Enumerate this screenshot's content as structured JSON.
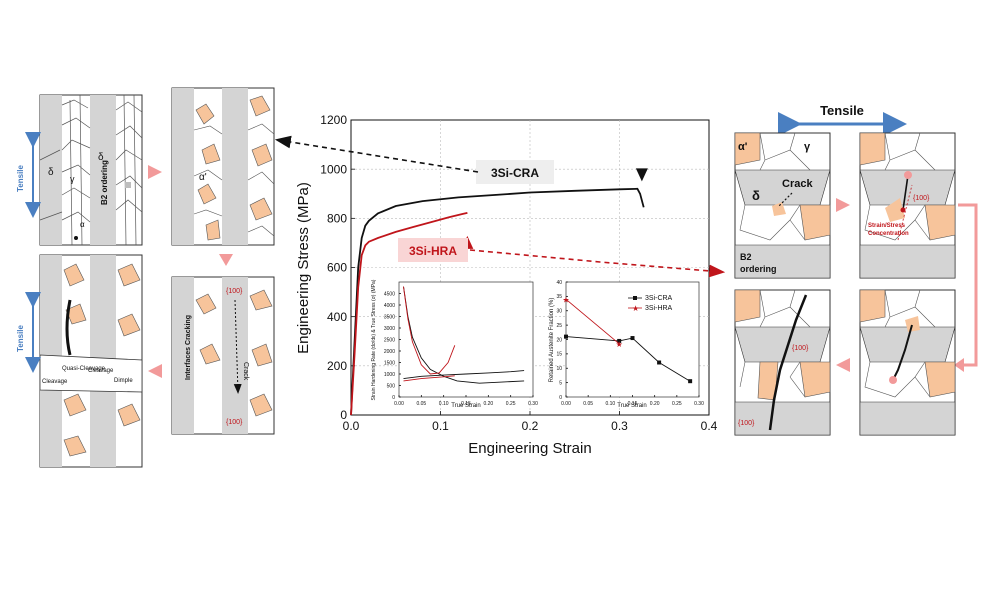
{
  "colors": {
    "cra": "#111111",
    "hra": "#c0151b",
    "delta": "#d4d4d4",
    "martensite": "#f7c49b",
    "tensile_arrow": "#4a7fc1",
    "flow_arrow": "#f29a9a",
    "panel_border": "#333333"
  },
  "left_panels": {
    "tensile_top": "Tensile",
    "delta_a": "δ",
    "delta_b": "δ",
    "gamma": "γ",
    "alpha": "α",
    "b2_ordering": "B2 ordering",
    "alpha_prime": "α'",
    "plane_top": "{100}",
    "crack": "Crack",
    "interfaces_cracking": "Interfaces Cracking",
    "plane_bottom": "{100}",
    "tensile_bottom": "Tensile",
    "cleavage": "Cleavage",
    "quasi_cleavage": "Quasi-Cleavage",
    "cleavage_2": "Cleavage",
    "dimple": "Dimple"
  },
  "right_panels": {
    "tensile": "Tensile",
    "alpha_prime": "α'",
    "gamma": "γ",
    "delta": "δ",
    "crack": "Crack",
    "b2_ordering_1": "B2",
    "b2_ordering_2": "ordering",
    "plane_1": "{100}",
    "concentration_1": "Strain/Stress",
    "concentration_2": "Concentration",
    "plane_2": "{100}",
    "plane_3": "{100}"
  },
  "chart_data": [
    {
      "type": "line",
      "xlabel": "Engineering Strain",
      "ylabel": "Engineering Stress (MPa)",
      "xlim": [
        0,
        0.4
      ],
      "ylim": [
        0,
        1200
      ],
      "xticks": [
        "0.0",
        "0.1",
        "0.2",
        "0.3",
        "0.4"
      ],
      "yticks": [
        "0",
        "200",
        "400",
        "600",
        "800",
        "1000",
        "1200"
      ],
      "grid": true,
      "series": [
        {
          "name": "3Si-CRA",
          "x": [
            0,
            0.004,
            0.008,
            0.012,
            0.016,
            0.02,
            0.03,
            0.05,
            0.08,
            0.12,
            0.16,
            0.2,
            0.25,
            0.3,
            0.32,
            0.323,
            0.327
          ],
          "y": [
            0,
            300,
            600,
            720,
            770,
            790,
            820,
            850,
            870,
            885,
            895,
            905,
            912,
            918,
            920,
            900,
            845
          ]
        },
        {
          "name": "3Si-HRA",
          "x": [
            0,
            0.004,
            0.008,
            0.012,
            0.016,
            0.02,
            0.03,
            0.05,
            0.07,
            0.09,
            0.11,
            0.125,
            0.13
          ],
          "y": [
            0,
            250,
            520,
            650,
            690,
            705,
            720,
            745,
            765,
            785,
            805,
            818,
            822
          ]
        }
      ],
      "markers": [
        {
          "series": "3Si-CRA",
          "x": 0.325,
          "y": 975
        },
        {
          "series": "3Si-HRA",
          "x": 0.13,
          "y": 700
        }
      ],
      "labels": [
        "3Si-CRA",
        "3Si-HRA"
      ]
    },
    {
      "type": "line",
      "xlabel": "True Strain",
      "ylabel": "Strain Hardening Rate (dσ/dε) & True Stress (σ) (MPa)",
      "xlim": [
        0,
        0.3
      ],
      "ylim": [
        0,
        5000
      ],
      "xticks": [
        "0.00",
        "0.05",
        "0.10",
        "0.15",
        "0.20",
        "0.25",
        "0.30"
      ],
      "yticks": [
        "0",
        "500",
        "1000",
        "1500",
        "2000",
        "2500",
        "3000",
        "3500",
        "4000",
        "4500"
      ],
      "series": [
        {
          "x": [
            0.01,
            0.02,
            0.03,
            0.05,
            0.07,
            0.1,
            0.13,
            0.18,
            0.23,
            0.28
          ],
          "y": [
            4800,
            3500,
            2600,
            1700,
            1200,
            900,
            700,
            600,
            650,
            700
          ]
        },
        {
          "x": [
            0.01,
            0.02,
            0.03,
            0.05,
            0.07,
            0.09,
            0.11,
            0.125
          ],
          "y": [
            4800,
            3400,
            2400,
            1400,
            1000,
            1050,
            1500,
            2250
          ]
        },
        {
          "x": [
            0.01,
            0.05,
            0.1,
            0.15,
            0.2,
            0.25,
            0.28
          ],
          "y": [
            800,
            900,
            950,
            1000,
            1050,
            1100,
            1150
          ]
        },
        {
          "x": [
            0.01,
            0.05,
            0.1,
            0.125
          ],
          "y": [
            700,
            800,
            880,
            920
          ]
        }
      ]
    },
    {
      "type": "line",
      "xlabel": "True Strain",
      "ylabel": "Retained Austenite Fraction (%)",
      "xlim": [
        0,
        0.3
      ],
      "ylim": [
        0,
        40
      ],
      "xticks": [
        "0.00",
        "0.05",
        "0.10",
        "0.15",
        "0.20",
        "0.25",
        "0.30"
      ],
      "yticks": [
        "0",
        "5",
        "10",
        "15",
        "20",
        "25",
        "30",
        "35",
        "40"
      ],
      "series": [
        {
          "name": "3Si-CRA",
          "x": [
            0,
            0.12,
            0.15,
            0.21,
            0.28
          ],
          "y": [
            21,
            19.5,
            20.5,
            12,
            5.5
          ]
        },
        {
          "name": "3Si-HRA",
          "x": [
            0,
            0.12
          ],
          "y": [
            34,
            18.5
          ]
        }
      ]
    }
  ]
}
